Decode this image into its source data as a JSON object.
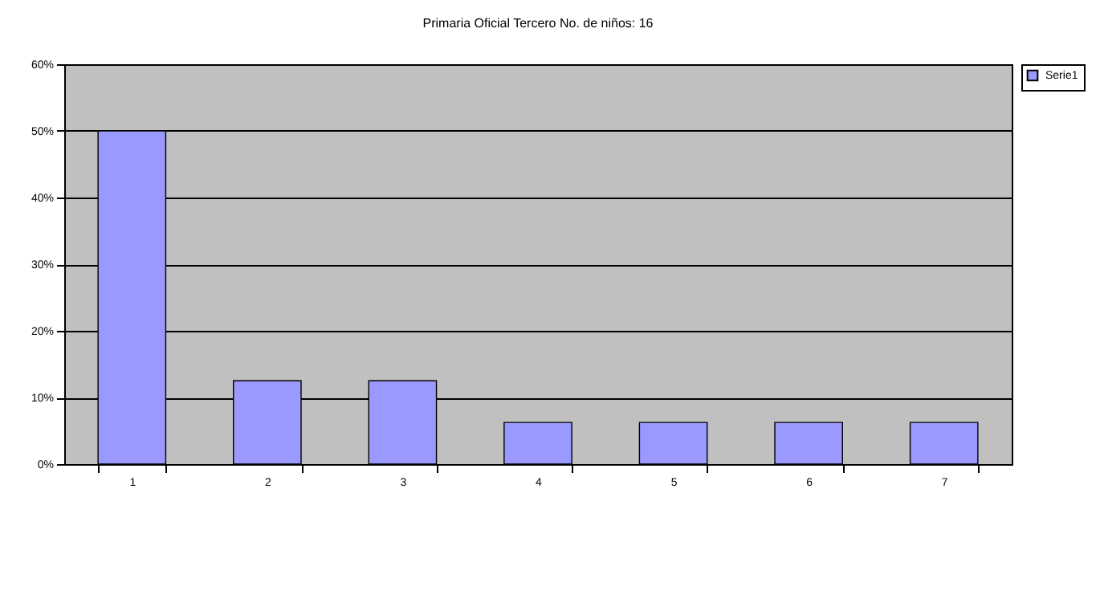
{
  "chart_data": {
    "type": "bar",
    "title": "Primaria Oficial Tercero No. de niños: 16",
    "categories": [
      "1",
      "2",
      "3",
      "4",
      "5",
      "6",
      "7"
    ],
    "series": [
      {
        "name": "Serie1",
        "color": "#9999ff",
        "values": [
          50,
          12.5,
          12.5,
          6.25,
          6.25,
          6.25,
          6.25
        ]
      }
    ],
    "ylim": [
      0,
      60
    ],
    "yticks": [
      {
        "value": 0,
        "label": "0%"
      },
      {
        "value": 10,
        "label": "10%"
      },
      {
        "value": 20,
        "label": "20%"
      },
      {
        "value": 30,
        "label": "30%"
      },
      {
        "value": 40,
        "label": "40%"
      },
      {
        "value": 50,
        "label": "50%"
      },
      {
        "value": 60,
        "label": "60%"
      }
    ],
    "grid": "y",
    "legend": "right"
  }
}
